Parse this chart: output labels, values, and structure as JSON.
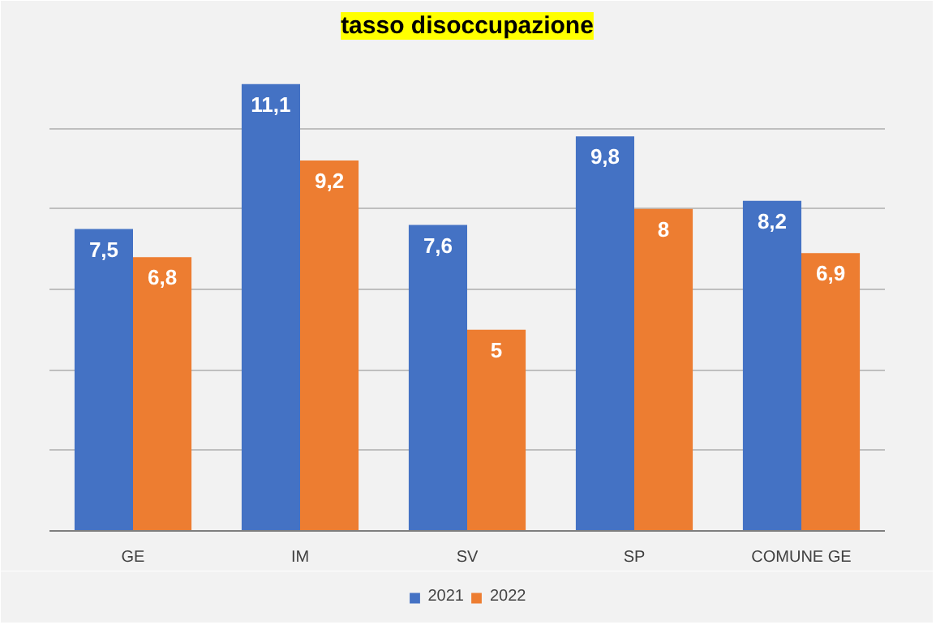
{
  "chart_data": {
    "type": "bar",
    "title": "tasso disoccupazione",
    "categories": [
      "GE",
      "IM",
      "SV",
      "SP",
      "COMUNE GE"
    ],
    "series": [
      {
        "name": "2021",
        "color": "#4472c4",
        "values": [
          7.5,
          11.1,
          7.6,
          9.8,
          8.2
        ],
        "value_labels": [
          "7,5",
          "11,1",
          "7,6",
          "9,8",
          "8,2"
        ]
      },
      {
        "name": "2022",
        "color": "#ed7d31",
        "values": [
          6.8,
          9.2,
          5,
          8,
          6.9
        ],
        "value_labels": [
          "6,8",
          "9,2",
          "5",
          "8",
          "6,9"
        ]
      }
    ],
    "ylim": [
      0,
      12
    ],
    "yticks": [
      {
        "value": 0,
        "label": null
      },
      {
        "value": 2,
        "label": null
      },
      {
        "value": 4,
        "label": null
      },
      {
        "value": 6,
        "label": null
      },
      {
        "value": 8,
        "label": null
      },
      {
        "value": 10,
        "label": null
      },
      {
        "value": 12,
        "label": null
      }
    ],
    "tick_labels": "x",
    "grid": "y",
    "legend": "bottom"
  }
}
